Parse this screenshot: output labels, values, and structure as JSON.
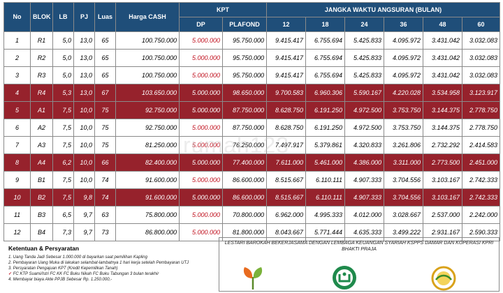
{
  "headers": {
    "no": "No",
    "blok": "BLOK",
    "lb": "LB",
    "pj": "PJ",
    "luas": "Luas",
    "harga_cash": "Harga CASH",
    "kpt": "KPT",
    "dp": "DP",
    "plafond": "PLAFOND",
    "jangka_waktu": "JANGKA WAKTU ANGSURAN (BULAN)",
    "tenors": [
      "12",
      "18",
      "24",
      "36",
      "48",
      "60"
    ]
  },
  "rows": [
    {
      "no": "1",
      "blok": "R1",
      "lb": "5,0",
      "pj": "13,0",
      "luas": "65",
      "harga": "100.750.000",
      "dp": "5.000.000",
      "plafond": "95.750.000",
      "t12": "9.415.417",
      "t18": "6.755.694",
      "t24": "5.425.833",
      "t36": "4.095.972",
      "t48": "3.431.042",
      "t60": "3.032.083",
      "highlight": false
    },
    {
      "no": "2",
      "blok": "R2",
      "lb": "5,0",
      "pj": "13,0",
      "luas": "65",
      "harga": "100.750.000",
      "dp": "5.000.000",
      "plafond": "95.750.000",
      "t12": "9.415.417",
      "t18": "6.755.694",
      "t24": "5.425.833",
      "t36": "4.095.972",
      "t48": "3.431.042",
      "t60": "3.032.083",
      "highlight": false
    },
    {
      "no": "3",
      "blok": "R3",
      "lb": "5,0",
      "pj": "13,0",
      "luas": "65",
      "harga": "100.750.000",
      "dp": "5.000.000",
      "plafond": "95.750.000",
      "t12": "9.415.417",
      "t18": "6.755.694",
      "t24": "5.425.833",
      "t36": "4.095.972",
      "t48": "3.431.042",
      "t60": "3.032.083",
      "highlight": false
    },
    {
      "no": "4",
      "blok": "R4",
      "lb": "5,3",
      "pj": "13,0",
      "luas": "67",
      "harga": "103.650.000",
      "dp": "5.000.000",
      "plafond": "98.650.000",
      "t12": "9.700.583",
      "t18": "6.960.306",
      "t24": "5.590.167",
      "t36": "4.220.028",
      "t48": "3.534.958",
      "t60": "3.123.917",
      "highlight": true
    },
    {
      "no": "5",
      "blok": "A1",
      "lb": "7,5",
      "pj": "10,0",
      "luas": "75",
      "harga": "92.750.000",
      "dp": "5.000.000",
      "plafond": "87.750.000",
      "t12": "8.628.750",
      "t18": "6.191.250",
      "t24": "4.972.500",
      "t36": "3.753.750",
      "t48": "3.144.375",
      "t60": "2.778.750",
      "highlight": true
    },
    {
      "no": "6",
      "blok": "A2",
      "lb": "7,5",
      "pj": "10,0",
      "luas": "75",
      "harga": "92.750.000",
      "dp": "5.000.000",
      "plafond": "87.750.000",
      "t12": "8.628.750",
      "t18": "6.191.250",
      "t24": "4.972.500",
      "t36": "3.753.750",
      "t48": "3.144.375",
      "t60": "2.778.750",
      "highlight": false
    },
    {
      "no": "7",
      "blok": "A3",
      "lb": "7,5",
      "pj": "10,0",
      "luas": "75",
      "harga": "81.250.000",
      "dp": "5.000.000",
      "plafond": "76.250.000",
      "t12": "7.497.917",
      "t18": "5.379.861",
      "t24": "4.320.833",
      "t36": "3.261.806",
      "t48": "2.732.292",
      "t60": "2.414.583",
      "highlight": false
    },
    {
      "no": "8",
      "blok": "A4",
      "lb": "6,2",
      "pj": "10,0",
      "luas": "66",
      "harga": "82.400.000",
      "dp": "5.000.000",
      "plafond": "77.400.000",
      "t12": "7.611.000",
      "t18": "5.461.000",
      "t24": "4.386.000",
      "t36": "3.311.000",
      "t48": "2.773.500",
      "t60": "2.451.000",
      "highlight": true
    },
    {
      "no": "9",
      "blok": "B1",
      "lb": "7,5",
      "pj": "10,0",
      "luas": "74",
      "harga": "91.600.000",
      "dp": "5.000.000",
      "plafond": "86.600.000",
      "t12": "8.515.667",
      "t18": "6.110.111",
      "t24": "4.907.333",
      "t36": "3.704.556",
      "t48": "3.103.167",
      "t60": "2.742.333",
      "highlight": false
    },
    {
      "no": "10",
      "blok": "B2",
      "lb": "7,5",
      "pj": "9,8",
      "luas": "74",
      "harga": "91.600.000",
      "dp": "5.000.000",
      "plafond": "86.600.000",
      "t12": "8.515.667",
      "t18": "6.110.111",
      "t24": "4.907.333",
      "t36": "3.704.556",
      "t48": "3.103.167",
      "t60": "2.742.333",
      "highlight": true
    },
    {
      "no": "11",
      "blok": "B3",
      "lb": "6,5",
      "pj": "9,7",
      "luas": "63",
      "harga": "75.800.000",
      "dp": "5.000.000",
      "plafond": "70.800.000",
      "t12": "6.962.000",
      "t18": "4.995.333",
      "t24": "4.012.000",
      "t36": "3.028.667",
      "t48": "2.537.000",
      "t60": "2.242.000",
      "highlight": false
    },
    {
      "no": "12",
      "blok": "B4",
      "lb": "7,3",
      "pj": "9,7",
      "luas": "73",
      "harga": "86.800.000",
      "dp": "5.000.000",
      "plafond": "81.800.000",
      "t12": "8.043.667",
      "t18": "5.771.444",
      "t24": "4.635.333",
      "t36": "3.499.222",
      "t48": "2.931.167",
      "t60": "2.590.333",
      "highlight": false
    }
  ],
  "terms": {
    "title": "Ketentuan & Persyaratan",
    "lines": [
      "1. Uang Tanda Jadi Sebesar 1.000.000 di bayarkan saat pemilihan Kapling",
      "2. Pembayaran Uang Muka di lakukan selambat-lambatnya 1 hari kerja setelah Pembayaran UTJ",
      "3. Persyaratan Pengajuan KPT (Kredit Kepemilikan Tanah)",
      "FC KTP Suami/Istri    FC KK    FC Buku Nikah    FC Buku Tabungan 3 bulan terakhir",
      "4. Membayar biaya Akte PPJB Sebesar Rp. 1.250.000,-"
    ]
  },
  "partner": {
    "text": "LESTARI BAROKAH BEKERJASAMA DENGAN LEMBAGA KEUANGAN SYARIAH KSPPS DAMAR DAN KOPERASI KPRI BHAKTI PRAJA"
  },
  "watermark": "rumah123",
  "colors": {
    "header": "#1f4e79",
    "highlight": "#96222c",
    "dp_text": "#c0101e"
  }
}
